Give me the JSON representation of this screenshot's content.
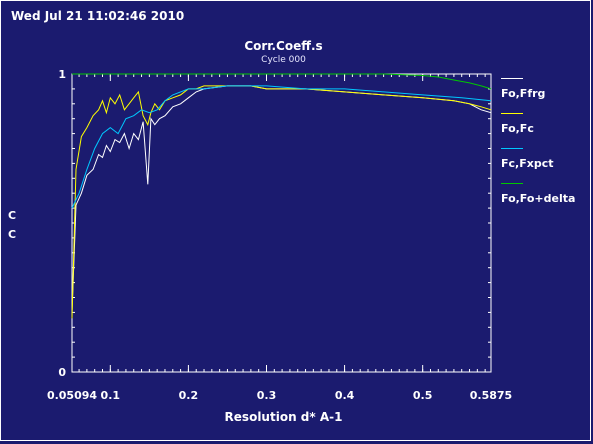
{
  "timestamp": "Wed Jul 21 11:02:46 2010",
  "chart_data": {
    "type": "line",
    "title": "Corr.Coeff.s",
    "subtitle": "Cycle 000",
    "xlabel": "Resolution d* A-1",
    "ylabel": "C\nC",
    "xlim": [
      0.05094,
      0.5875
    ],
    "ylim": [
      0,
      1
    ],
    "x_ticks": [
      0.05094,
      0.1,
      0.2,
      0.3,
      0.4,
      0.5,
      0.5875
    ],
    "x_tick_labels": [
      "0.05094",
      "0.1",
      "0.2",
      "0.3",
      "0.4",
      "0.5",
      "0.5875"
    ],
    "y_ticks": [
      0,
      1
    ],
    "y_tick_labels": [
      "0",
      "1"
    ],
    "legend_position": "right",
    "series": [
      {
        "name": "Fo,Ffrg",
        "color": "#ffffff",
        "x": [
          0.051,
          0.056,
          0.063,
          0.07,
          0.078,
          0.085,
          0.09,
          0.095,
          0.1,
          0.106,
          0.112,
          0.118,
          0.124,
          0.13,
          0.136,
          0.142,
          0.148,
          0.152,
          0.157,
          0.163,
          0.17,
          0.18,
          0.19,
          0.2,
          0.21,
          0.22,
          0.25,
          0.28,
          0.3,
          0.35,
          0.4,
          0.45,
          0.5,
          0.54,
          0.56,
          0.575,
          0.5875
        ],
        "y": [
          0.2,
          0.56,
          0.6,
          0.66,
          0.68,
          0.73,
          0.72,
          0.76,
          0.74,
          0.78,
          0.77,
          0.8,
          0.75,
          0.8,
          0.78,
          0.84,
          0.63,
          0.85,
          0.83,
          0.85,
          0.86,
          0.89,
          0.9,
          0.92,
          0.94,
          0.95,
          0.96,
          0.96,
          0.95,
          0.95,
          0.94,
          0.93,
          0.92,
          0.91,
          0.9,
          0.88,
          0.87
        ]
      },
      {
        "name": "Fo,Fc",
        "color": "#ffff00",
        "x": [
          0.051,
          0.056,
          0.063,
          0.07,
          0.078,
          0.085,
          0.09,
          0.095,
          0.1,
          0.106,
          0.112,
          0.118,
          0.124,
          0.13,
          0.136,
          0.142,
          0.148,
          0.152,
          0.157,
          0.163,
          0.17,
          0.18,
          0.19,
          0.2,
          0.21,
          0.22,
          0.25,
          0.28,
          0.3,
          0.35,
          0.4,
          0.45,
          0.5,
          0.54,
          0.56,
          0.575,
          0.5875
        ],
        "y": [
          0.18,
          0.68,
          0.79,
          0.82,
          0.86,
          0.88,
          0.91,
          0.87,
          0.92,
          0.9,
          0.93,
          0.88,
          0.9,
          0.92,
          0.94,
          0.86,
          0.83,
          0.87,
          0.9,
          0.88,
          0.91,
          0.92,
          0.93,
          0.95,
          0.95,
          0.96,
          0.96,
          0.96,
          0.95,
          0.95,
          0.94,
          0.93,
          0.92,
          0.91,
          0.9,
          0.89,
          0.88
        ]
      },
      {
        "name": "Fc,Fxpct",
        "color": "#00c8ff",
        "x": [
          0.051,
          0.06,
          0.07,
          0.08,
          0.09,
          0.1,
          0.11,
          0.12,
          0.13,
          0.14,
          0.15,
          0.16,
          0.17,
          0.18,
          0.2,
          0.22,
          0.25,
          0.3,
          0.35,
          0.4,
          0.45,
          0.5,
          0.55,
          0.5875
        ],
        "y": [
          0.55,
          0.6,
          0.68,
          0.75,
          0.8,
          0.82,
          0.8,
          0.85,
          0.86,
          0.88,
          0.87,
          0.88,
          0.91,
          0.93,
          0.95,
          0.95,
          0.96,
          0.96,
          0.95,
          0.95,
          0.94,
          0.93,
          0.92,
          0.91
        ]
      },
      {
        "name": "Fo,Fo+delta",
        "color": "#00c800",
        "x": [
          0.051,
          0.1,
          0.2,
          0.3,
          0.4,
          0.45,
          0.5,
          0.52,
          0.54,
          0.56,
          0.575,
          0.5875
        ],
        "y": [
          1.0,
          1.0,
          1.0,
          1.0,
          1.0,
          1.0,
          0.995,
          0.99,
          0.98,
          0.97,
          0.96,
          0.95
        ]
      }
    ]
  }
}
